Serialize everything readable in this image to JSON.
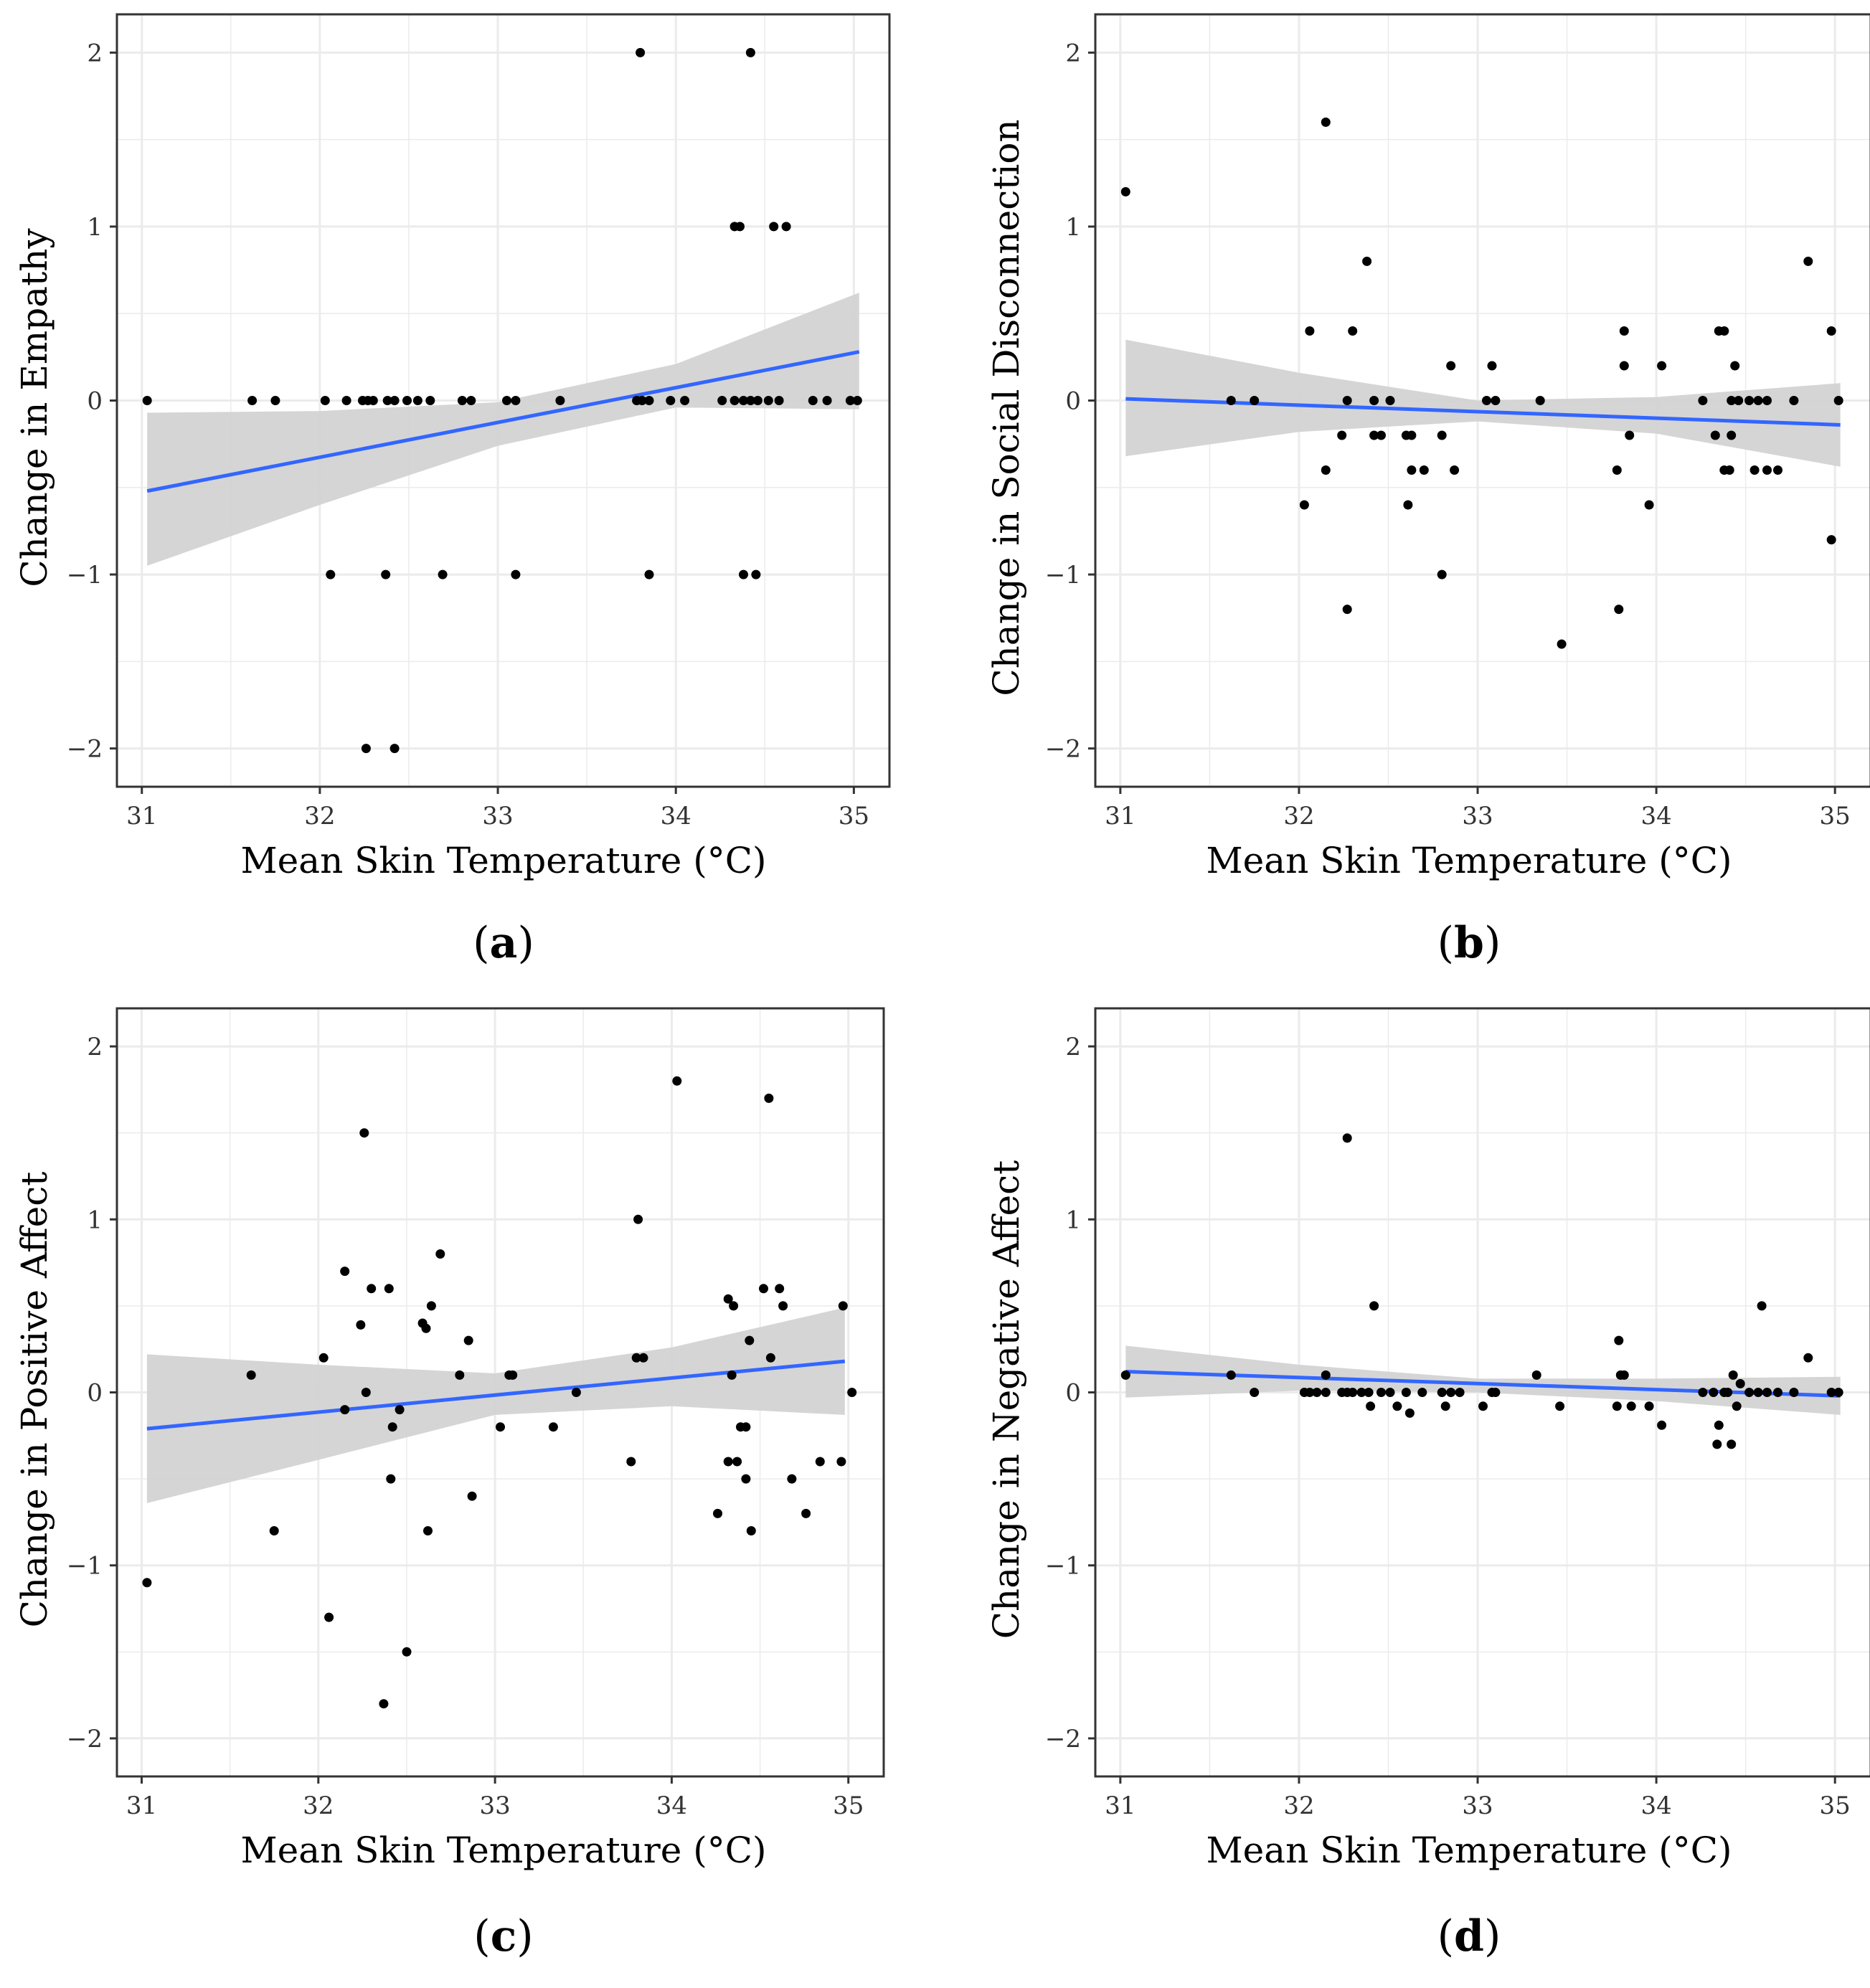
{
  "figure": {
    "panels": [
      "a",
      "b",
      "c",
      "d"
    ]
  },
  "chart_data": [
    {
      "id": "a",
      "panel_label": "a",
      "type": "scatter",
      "title": "",
      "xlabel": "Mean Skin Temperature (°C)",
      "ylabel": "Change in Empathy",
      "xlim": [
        30.86,
        35.2
      ],
      "ylim": [
        -2.22,
        2.22
      ],
      "xticks": [
        31,
        32,
        33,
        34,
        35
      ],
      "yticks": [
        -2,
        -1,
        0,
        1,
        2
      ],
      "xtick_labels": [
        "31",
        "32",
        "33",
        "34",
        "35"
      ],
      "ytick_labels": [
        "−2",
        "−1",
        "0",
        "1",
        "2"
      ],
      "grid": true,
      "points": [
        [
          31.03,
          0
        ],
        [
          31.62,
          0
        ],
        [
          31.75,
          0
        ],
        [
          32.03,
          0
        ],
        [
          32.15,
          0
        ],
        [
          32.24,
          0
        ],
        [
          32.27,
          0
        ],
        [
          32.3,
          0
        ],
        [
          32.38,
          0
        ],
        [
          32.42,
          0
        ],
        [
          32.49,
          0
        ],
        [
          32.55,
          0
        ],
        [
          32.62,
          0
        ],
        [
          32.8,
          0
        ],
        [
          32.85,
          0
        ],
        [
          33.05,
          0
        ],
        [
          33.1,
          0
        ],
        [
          33.35,
          0
        ],
        [
          33.78,
          0
        ],
        [
          33.81,
          0
        ],
        [
          33.85,
          0
        ],
        [
          33.97,
          0
        ],
        [
          34.05,
          0
        ],
        [
          34.26,
          0
        ],
        [
          34.33,
          0
        ],
        [
          34.38,
          0
        ],
        [
          34.42,
          0
        ],
        [
          34.46,
          0
        ],
        [
          34.52,
          0
        ],
        [
          34.58,
          0
        ],
        [
          34.77,
          0
        ],
        [
          34.85,
          0
        ],
        [
          34.98,
          0
        ],
        [
          35.02,
          0
        ],
        [
          32.06,
          -1
        ],
        [
          32.37,
          -1
        ],
        [
          32.69,
          -1
        ],
        [
          33.1,
          -1
        ],
        [
          33.85,
          -1
        ],
        [
          34.38,
          -1
        ],
        [
          34.45,
          -1
        ],
        [
          32.26,
          -2
        ],
        [
          32.42,
          -2
        ],
        [
          34.33,
          1
        ],
        [
          34.36,
          1
        ],
        [
          34.55,
          1
        ],
        [
          34.62,
          1
        ],
        [
          33.8,
          2
        ],
        [
          34.42,
          2
        ]
      ],
      "fit": {
        "x": [
          31.03,
          35.03
        ],
        "y": [
          -0.52,
          0.28
        ]
      },
      "ci": {
        "x": [
          31.03,
          32.0,
          33.0,
          34.0,
          35.03
        ],
        "lower": [
          -0.95,
          -0.6,
          -0.26,
          -0.04,
          -0.05
        ],
        "upper": [
          -0.07,
          -0.06,
          -0.01,
          0.21,
          0.62
        ]
      },
      "colors": {
        "points": "#000000",
        "fit": "#3366FF",
        "ci": "#D3D3D3",
        "panel_bg": "#FFFFFF",
        "grid": "#EBEBEB",
        "border": "#333333"
      }
    },
    {
      "id": "b",
      "panel_label": "b",
      "type": "scatter",
      "title": "",
      "xlabel": "Mean Skin Temperature (°C)",
      "ylabel": "Change in Social Disconnection",
      "xlim": [
        30.86,
        35.2
      ],
      "ylim": [
        -2.22,
        2.22
      ],
      "xticks": [
        31,
        32,
        33,
        34,
        35
      ],
      "yticks": [
        -2,
        -1,
        0,
        1,
        2
      ],
      "xtick_labels": [
        "31",
        "32",
        "33",
        "34",
        "35"
      ],
      "ytick_labels": [
        "−2",
        "−1",
        "0",
        "1",
        "2"
      ],
      "grid": true,
      "points": [
        [
          31.03,
          1.2
        ],
        [
          32.15,
          1.6
        ],
        [
          32.38,
          0.8
        ],
        [
          34.85,
          0.8
        ],
        [
          32.06,
          0.4
        ],
        [
          32.3,
          0.4
        ],
        [
          33.82,
          0.4
        ],
        [
          34.35,
          0.4
        ],
        [
          34.38,
          0.4
        ],
        [
          34.98,
          0.4
        ],
        [
          32.85,
          0.2
        ],
        [
          33.08,
          0.2
        ],
        [
          33.82,
          0.2
        ],
        [
          34.03,
          0.2
        ],
        [
          34.44,
          0.2
        ],
        [
          31.62,
          0
        ],
        [
          31.75,
          0
        ],
        [
          32.27,
          0
        ],
        [
          32.42,
          0
        ],
        [
          32.51,
          0
        ],
        [
          33.05,
          0
        ],
        [
          33.1,
          0
        ],
        [
          33.35,
          0
        ],
        [
          34.26,
          0
        ],
        [
          34.42,
          0
        ],
        [
          34.46,
          0
        ],
        [
          34.52,
          0
        ],
        [
          34.57,
          0
        ],
        [
          34.62,
          0
        ],
        [
          34.77,
          0
        ],
        [
          35.02,
          0
        ],
        [
          32.24,
          -0.2
        ],
        [
          32.42,
          -0.2
        ],
        [
          32.46,
          -0.2
        ],
        [
          32.6,
          -0.2
        ],
        [
          32.63,
          -0.2
        ],
        [
          32.8,
          -0.2
        ],
        [
          33.85,
          -0.2
        ],
        [
          34.33,
          -0.2
        ],
        [
          34.42,
          -0.2
        ],
        [
          32.15,
          -0.4
        ],
        [
          32.63,
          -0.4
        ],
        [
          32.7,
          -0.4
        ],
        [
          32.87,
          -0.4
        ],
        [
          33.78,
          -0.4
        ],
        [
          34.38,
          -0.4
        ],
        [
          34.41,
          -0.4
        ],
        [
          34.55,
          -0.4
        ],
        [
          34.62,
          -0.4
        ],
        [
          34.68,
          -0.4
        ],
        [
          32.03,
          -0.6
        ],
        [
          32.61,
          -0.6
        ],
        [
          33.96,
          -0.6
        ],
        [
          34.98,
          -0.8
        ],
        [
          32.8,
          -1.0
        ],
        [
          32.27,
          -1.2
        ],
        [
          33.79,
          -1.2
        ],
        [
          33.47,
          -1.4
        ]
      ],
      "fit": {
        "x": [
          31.03,
          35.03
        ],
        "y": [
          0.01,
          -0.14
        ]
      },
      "ci": {
        "x": [
          31.03,
          32.0,
          33.0,
          34.0,
          35.03
        ],
        "lower": [
          -0.32,
          -0.18,
          -0.12,
          -0.19,
          -0.38
        ],
        "upper": [
          0.35,
          0.16,
          0.0,
          0.02,
          0.1
        ]
      },
      "colors": {
        "points": "#000000",
        "fit": "#3366FF",
        "ci": "#D3D3D3",
        "panel_bg": "#FFFFFF",
        "grid": "#EBEBEB",
        "border": "#333333"
      }
    },
    {
      "id": "c",
      "panel_label": "c",
      "type": "scatter",
      "title": "",
      "xlabel": "Mean Skin Temperature (°C)",
      "ylabel": "Change in Positive Affect",
      "xlim": [
        30.86,
        35.2
      ],
      "ylim": [
        -2.22,
        2.22
      ],
      "xticks": [
        31,
        32,
        33,
        34,
        35
      ],
      "yticks": [
        -2,
        -1,
        0,
        1,
        2
      ],
      "xtick_labels": [
        "31",
        "32",
        "33",
        "34",
        "35"
      ],
      "ytick_labels": [
        "−2",
        "−1",
        "0",
        "1",
        "2"
      ],
      "grid": true,
      "points": [
        [
          31.03,
          -1.1
        ],
        [
          31.62,
          0.1
        ],
        [
          31.75,
          -0.8
        ],
        [
          32.03,
          0.2
        ],
        [
          32.06,
          -1.3
        ],
        [
          32.15,
          -0.1
        ],
        [
          32.15,
          0.7
        ],
        [
          32.24,
          0.39
        ],
        [
          32.26,
          1.5
        ],
        [
          32.27,
          0.0
        ],
        [
          32.3,
          0.6
        ],
        [
          32.37,
          -1.8
        ],
        [
          32.4,
          0.6
        ],
        [
          32.41,
          -0.5
        ],
        [
          32.42,
          -0.2
        ],
        [
          32.46,
          -0.1
        ],
        [
          32.5,
          -1.5
        ],
        [
          32.59,
          0.4
        ],
        [
          32.61,
          0.37
        ],
        [
          32.62,
          -0.8
        ],
        [
          32.64,
          0.5
        ],
        [
          32.69,
          0.8
        ],
        [
          32.8,
          0.1
        ],
        [
          32.85,
          0.3
        ],
        [
          32.87,
          -0.6
        ],
        [
          33.03,
          -0.2
        ],
        [
          33.08,
          0.1
        ],
        [
          33.1,
          0.1
        ],
        [
          33.33,
          -0.2
        ],
        [
          33.46,
          0.0
        ],
        [
          33.77,
          -0.4
        ],
        [
          33.8,
          0.2
        ],
        [
          33.81,
          1.0
        ],
        [
          33.84,
          0.2
        ],
        [
          34.03,
          1.8
        ],
        [
          34.26,
          -0.7
        ],
        [
          34.32,
          0.54
        ],
        [
          34.32,
          -0.4
        ],
        [
          34.34,
          0.1
        ],
        [
          34.35,
          0.5
        ],
        [
          34.37,
          -0.4
        ],
        [
          34.39,
          -0.2
        ],
        [
          34.42,
          -0.2
        ],
        [
          34.42,
          -0.5
        ],
        [
          34.44,
          0.3
        ],
        [
          34.45,
          -0.8
        ],
        [
          34.52,
          0.6
        ],
        [
          34.55,
          1.7
        ],
        [
          34.56,
          0.2
        ],
        [
          34.61,
          0.6
        ],
        [
          34.63,
          0.5
        ],
        [
          34.68,
          -0.5
        ],
        [
          34.76,
          -0.7
        ],
        [
          34.84,
          -0.4
        ],
        [
          34.96,
          -0.4
        ],
        [
          34.97,
          0.5
        ],
        [
          35.02,
          0.0
        ]
      ],
      "fit": {
        "x": [
          31.03,
          34.98
        ],
        "y": [
          -0.21,
          0.18
        ]
      },
      "ci": {
        "x": [
          31.03,
          32.0,
          33.0,
          34.0,
          34.98
        ],
        "lower": [
          -0.64,
          -0.39,
          -0.13,
          -0.08,
          -0.13
        ],
        "upper": [
          0.22,
          0.16,
          0.11,
          0.26,
          0.49
        ]
      },
      "colors": {
        "points": "#000000",
        "fit": "#3366FF",
        "ci": "#D3D3D3",
        "panel_bg": "#FFFFFF",
        "grid": "#EBEBEB",
        "border": "#333333"
      }
    },
    {
      "id": "d",
      "panel_label": "d",
      "type": "scatter",
      "title": "",
      "xlabel": "Mean Skin Temperature (°C)",
      "ylabel": "Change in Negative Affect",
      "xlim": [
        30.86,
        35.2
      ],
      "ylim": [
        -2.22,
        2.22
      ],
      "xticks": [
        31,
        32,
        33,
        34,
        35
      ],
      "yticks": [
        -2,
        -1,
        0,
        1,
        2
      ],
      "xtick_labels": [
        "31",
        "32",
        "33",
        "34",
        "35"
      ],
      "ytick_labels": [
        "−2",
        "−1",
        "0",
        "1",
        "2"
      ],
      "grid": true,
      "points": [
        [
          31.03,
          0.1
        ],
        [
          31.62,
          0.1
        ],
        [
          31.75,
          0.0
        ],
        [
          32.03,
          0.0
        ],
        [
          32.06,
          0.0
        ],
        [
          32.1,
          0.0
        ],
        [
          32.15,
          0.1
        ],
        [
          32.15,
          0.0
        ],
        [
          32.24,
          0.0
        ],
        [
          32.27,
          1.47
        ],
        [
          32.27,
          0.0
        ],
        [
          32.3,
          0.0
        ],
        [
          32.35,
          0.0
        ],
        [
          32.39,
          0.0
        ],
        [
          32.4,
          -0.08
        ],
        [
          32.42,
          0.5
        ],
        [
          32.46,
          0.0
        ],
        [
          32.51,
          0.0
        ],
        [
          32.55,
          -0.08
        ],
        [
          32.6,
          0.0
        ],
        [
          32.62,
          -0.12
        ],
        [
          32.69,
          0.0
        ],
        [
          32.8,
          0.0
        ],
        [
          32.82,
          -0.08
        ],
        [
          32.85,
          0.0
        ],
        [
          32.9,
          0.0
        ],
        [
          33.03,
          -0.08
        ],
        [
          33.08,
          0.0
        ],
        [
          33.1,
          0.0
        ],
        [
          33.33,
          0.1
        ],
        [
          33.46,
          -0.08
        ],
        [
          33.78,
          -0.08
        ],
        [
          33.79,
          0.3
        ],
        [
          33.8,
          0.1
        ],
        [
          33.82,
          0.1
        ],
        [
          33.86,
          -0.08
        ],
        [
          33.96,
          -0.08
        ],
        [
          34.03,
          -0.19
        ],
        [
          34.26,
          0.0
        ],
        [
          34.32,
          0.0
        ],
        [
          34.34,
          -0.3
        ],
        [
          34.35,
          -0.19
        ],
        [
          34.38,
          0.0
        ],
        [
          34.4,
          0.0
        ],
        [
          34.42,
          -0.3
        ],
        [
          34.43,
          0.1
        ],
        [
          34.45,
          -0.08
        ],
        [
          34.47,
          0.05
        ],
        [
          34.52,
          0.0
        ],
        [
          34.57,
          0.0
        ],
        [
          34.59,
          0.5
        ],
        [
          34.62,
          0.0
        ],
        [
          34.68,
          0.0
        ],
        [
          34.77,
          0.0
        ],
        [
          34.85,
          0.2
        ],
        [
          34.98,
          0.0
        ],
        [
          35.02,
          0.0
        ]
      ],
      "fit": {
        "x": [
          31.03,
          35.03
        ],
        "y": [
          0.12,
          -0.02
        ]
      },
      "ci": {
        "x": [
          31.03,
          32.0,
          33.0,
          34.0,
          35.03
        ],
        "lower": [
          -0.03,
          0.01,
          0.0,
          -0.05,
          -0.13
        ],
        "upper": [
          0.27,
          0.16,
          0.08,
          0.08,
          0.09
        ]
      },
      "colors": {
        "points": "#000000",
        "fit": "#3366FF",
        "ci": "#D3D3D3",
        "panel_bg": "#FFFFFF",
        "grid": "#EBEBEB",
        "border": "#333333"
      }
    }
  ]
}
